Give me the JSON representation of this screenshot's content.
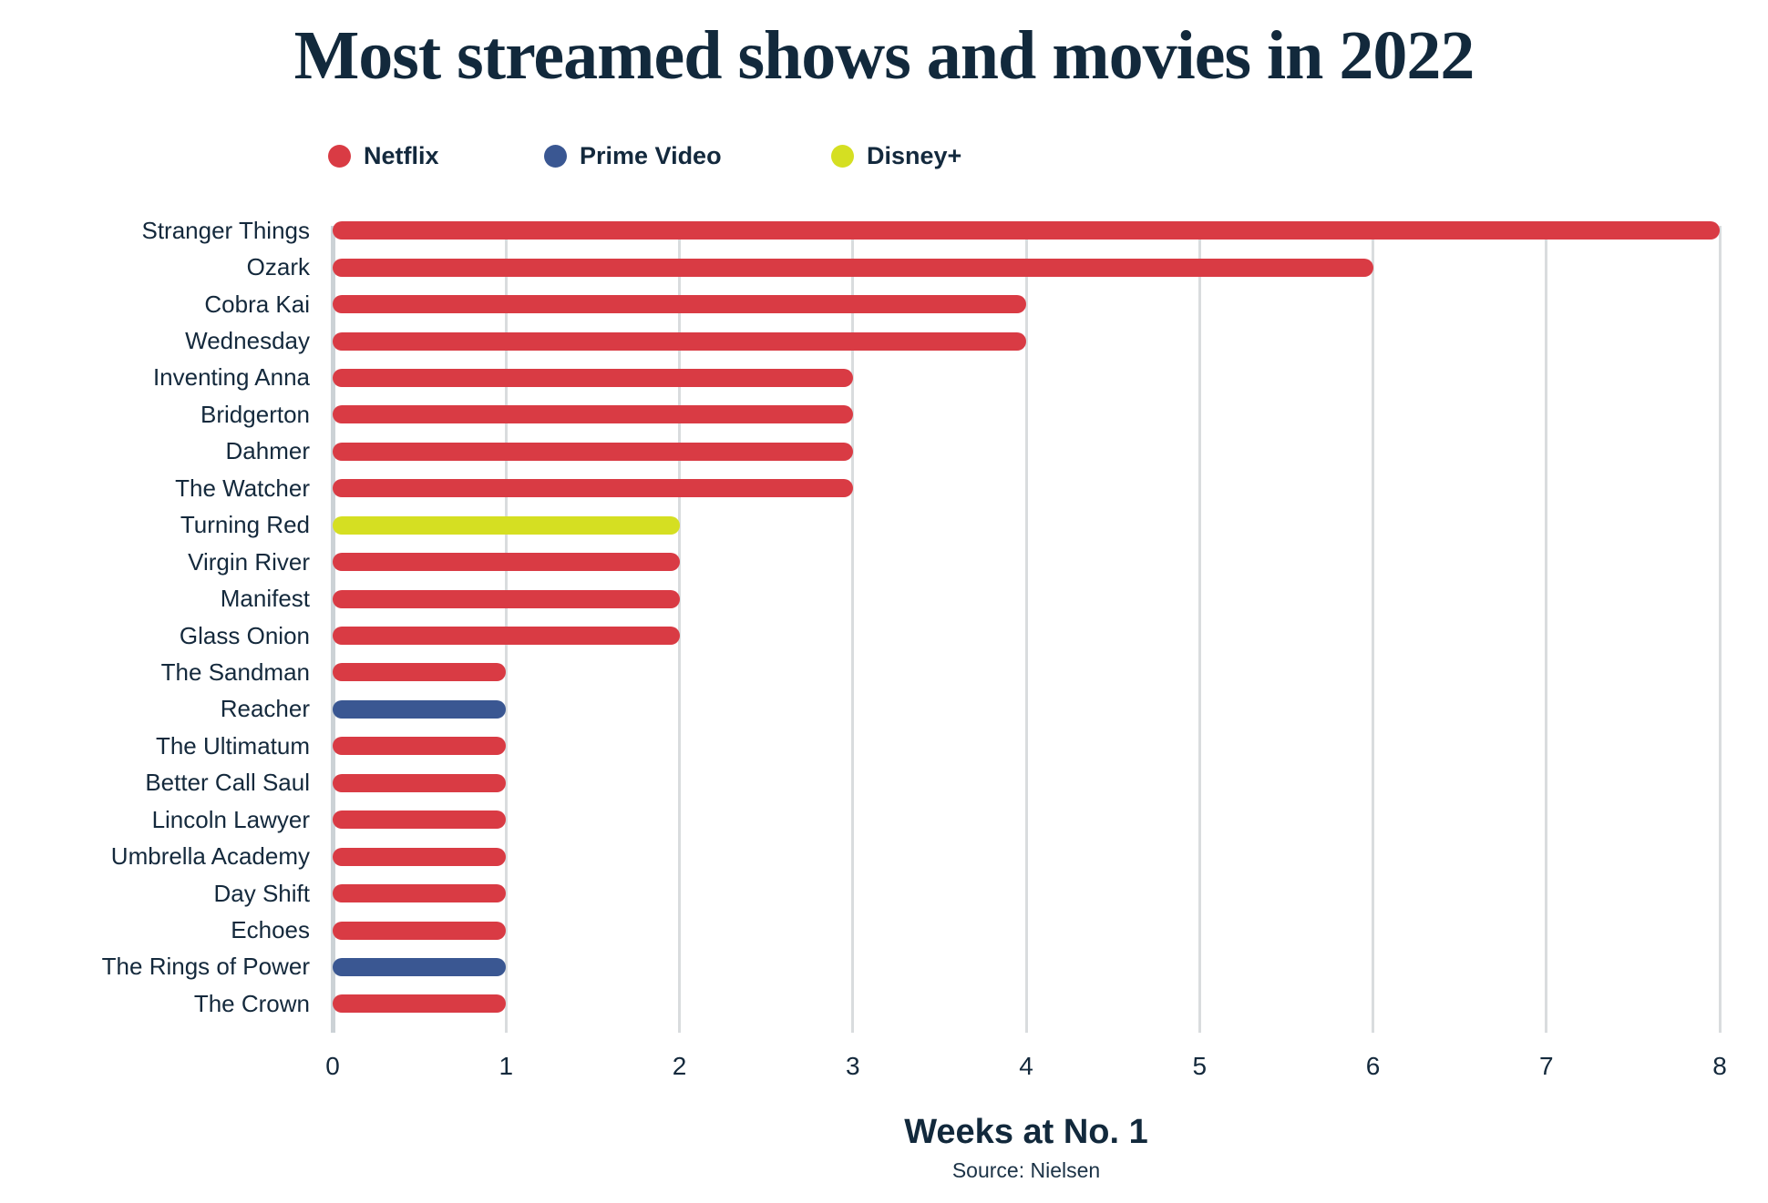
{
  "title": "Most streamed shows and movies in 2022",
  "chart_data": {
    "type": "bar",
    "orientation": "horizontal",
    "title": "Most streamed shows and movies in 2022",
    "xlabel": "Weeks at No. 1",
    "source": "Source: Nielsen",
    "xlim": [
      0,
      8
    ],
    "xticks": [
      0,
      1,
      2,
      3,
      4,
      5,
      6,
      7,
      8
    ],
    "grid": true,
    "legend_position": "top",
    "legend": [
      {
        "name": "Netflix",
        "color": "#d93b44"
      },
      {
        "name": "Prime Video",
        "color": "#3a5792"
      },
      {
        "name": "Disney+",
        "color": "#d5df22"
      }
    ],
    "bars": [
      {
        "label": "Stranger Things",
        "value": 8,
        "service": "Netflix"
      },
      {
        "label": "Ozark",
        "value": 6,
        "service": "Netflix"
      },
      {
        "label": "Cobra Kai",
        "value": 4,
        "service": "Netflix"
      },
      {
        "label": "Wednesday",
        "value": 4,
        "service": "Netflix"
      },
      {
        "label": "Inventing Anna",
        "value": 3,
        "service": "Netflix"
      },
      {
        "label": "Bridgerton",
        "value": 3,
        "service": "Netflix"
      },
      {
        "label": "Dahmer",
        "value": 3,
        "service": "Netflix"
      },
      {
        "label": "The Watcher",
        "value": 3,
        "service": "Netflix"
      },
      {
        "label": "Turning Red",
        "value": 2,
        "service": "Disney+"
      },
      {
        "label": "Virgin River",
        "value": 2,
        "service": "Netflix"
      },
      {
        "label": "Manifest",
        "value": 2,
        "service": "Netflix"
      },
      {
        "label": "Glass Onion",
        "value": 2,
        "service": "Netflix"
      },
      {
        "label": "The Sandman",
        "value": 1,
        "service": "Netflix"
      },
      {
        "label": "Reacher",
        "value": 1,
        "service": "Prime Video"
      },
      {
        "label": "The Ultimatum",
        "value": 1,
        "service": "Netflix"
      },
      {
        "label": "Better Call Saul",
        "value": 1,
        "service": "Netflix"
      },
      {
        "label": "Lincoln Lawyer",
        "value": 1,
        "service": "Netflix"
      },
      {
        "label": "Umbrella Academy",
        "value": 1,
        "service": "Netflix"
      },
      {
        "label": "Day Shift",
        "value": 1,
        "service": "Netflix"
      },
      {
        "label": "Echoes",
        "value": 1,
        "service": "Netflix"
      },
      {
        "label": "The Rings of Power",
        "value": 1,
        "service": "Prime Video"
      },
      {
        "label": "The Crown",
        "value": 1,
        "service": "Netflix"
      }
    ]
  },
  "colors": {
    "background": "#ffffff",
    "text": "#13293d",
    "gridline": "#d9dcde",
    "zero_line": "#ccd2d6",
    "netflix": "#d93b44",
    "prime_video": "#3a5792",
    "disney_plus": "#d5df22"
  }
}
